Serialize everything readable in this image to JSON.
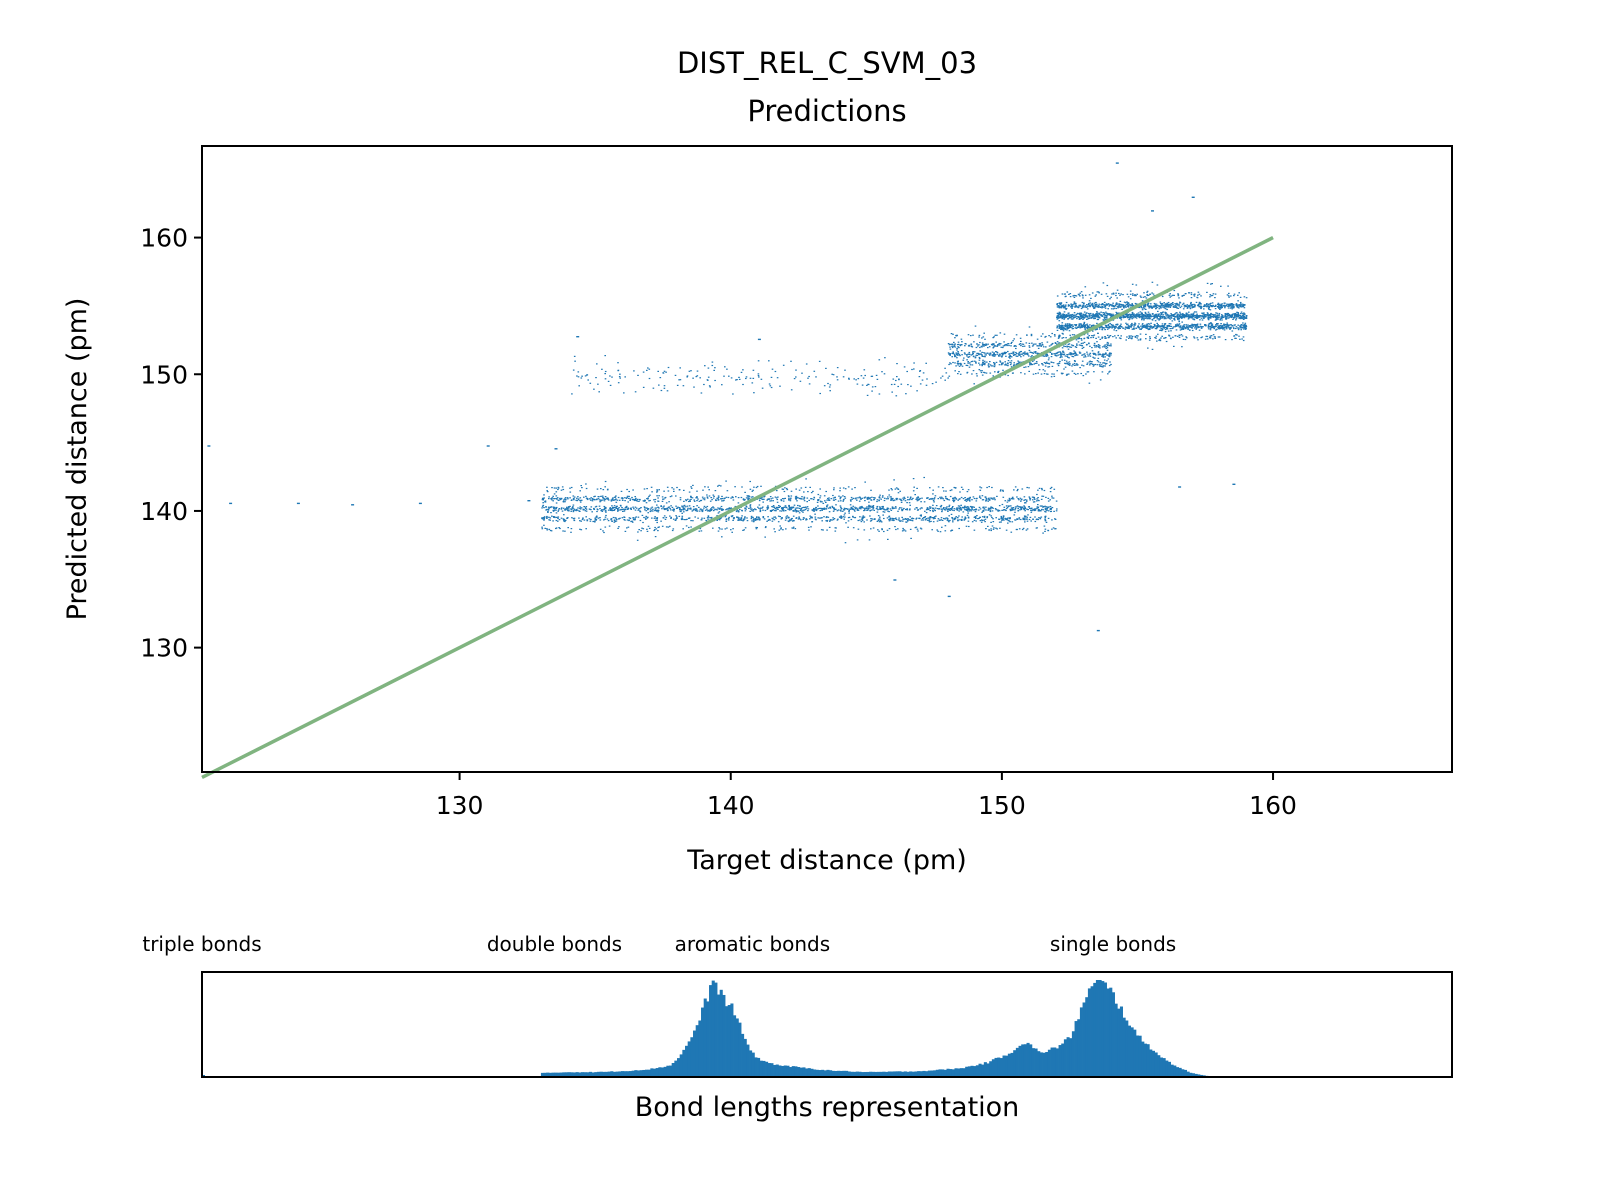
{
  "chart_data": [
    {
      "type": "scatter",
      "title": "DIST_REL_C_SVM_03",
      "subtitle": "Predictions",
      "xlabel": "Target distance (pm)",
      "ylabel": "Predicted distance (pm)",
      "xlim": [
        120.5,
        166.6
      ],
      "ylim": [
        120.9,
        166.7
      ],
      "xticks": [
        130,
        140,
        150,
        160
      ],
      "yticks": [
        130,
        140,
        150,
        160
      ],
      "grid": false,
      "point_color": "#1f77b4",
      "reference_line": {
        "x": [
          120.5,
          160
        ],
        "y": [
          120.5,
          160
        ],
        "color": "#80b480"
      },
      "clusters": [
        {
          "x_range": [
            133,
            152
          ],
          "y_center": 140.2,
          "y_spread": 1.6,
          "count": 2600
        },
        {
          "x_range": [
            134,
            148
          ],
          "y_center": 149.8,
          "y_spread": 1.2,
          "count": 220
        },
        {
          "x_range": [
            148,
            154
          ],
          "y_center": 151.5,
          "y_spread": 1.5,
          "count": 900
        },
        {
          "x_range": [
            152,
            159
          ],
          "y_center": 154.3,
          "y_spread": 1.7,
          "count": 2400
        }
      ],
      "stray_points": [
        [
          120.7,
          144.8
        ],
        [
          121.5,
          140.6
        ],
        [
          124.0,
          140.6
        ],
        [
          126.0,
          140.5
        ],
        [
          128.5,
          140.6
        ],
        [
          131.0,
          144.8
        ],
        [
          132.5,
          140.8
        ],
        [
          133.5,
          144.6
        ],
        [
          146.0,
          135.0
        ],
        [
          148.0,
          133.8
        ],
        [
          153.5,
          131.3
        ],
        [
          154.2,
          165.5
        ],
        [
          155.5,
          162.0
        ],
        [
          157.0,
          163.0
        ],
        [
          158.5,
          142.0
        ],
        [
          156.5,
          141.8
        ],
        [
          134.3,
          152.8
        ],
        [
          141.0,
          152.6
        ]
      ]
    },
    {
      "type": "area",
      "xlabel": "Bond lengths representation",
      "xlim": [
        120.5,
        166.6
      ],
      "color": "#1f77b4",
      "annotations": [
        {
          "text": "triple bonds",
          "x": 120.5
        },
        {
          "text": "double bonds",
          "x": 133.5
        },
        {
          "text": "aromatic bonds",
          "x": 140.8
        },
        {
          "text": "single bonds",
          "x": 154.1
        }
      ],
      "x": [
        133.0,
        134.0,
        135.0,
        136.0,
        137.0,
        137.8,
        138.3,
        138.8,
        139.1,
        139.4,
        139.6,
        139.8,
        140.0,
        140.2,
        140.5,
        140.8,
        141.2,
        141.8,
        142.5,
        143.5,
        145.0,
        147.0,
        148.5,
        149.5,
        150.3,
        150.8,
        151.1,
        151.4,
        151.7,
        152.0,
        152.5,
        153.0,
        153.3,
        153.6,
        153.9,
        154.2,
        154.6,
        155.0,
        155.5,
        156.0,
        156.5,
        157.0,
        157.6
      ],
      "y": [
        0.04,
        0.05,
        0.05,
        0.06,
        0.08,
        0.12,
        0.28,
        0.55,
        0.8,
        0.99,
        0.88,
        0.78,
        0.74,
        0.62,
        0.4,
        0.24,
        0.16,
        0.12,
        0.1,
        0.07,
        0.05,
        0.06,
        0.09,
        0.15,
        0.25,
        0.36,
        0.32,
        0.24,
        0.28,
        0.3,
        0.4,
        0.75,
        0.92,
        1.0,
        0.92,
        0.8,
        0.6,
        0.42,
        0.3,
        0.18,
        0.1,
        0.04,
        0.01
      ]
    }
  ]
}
